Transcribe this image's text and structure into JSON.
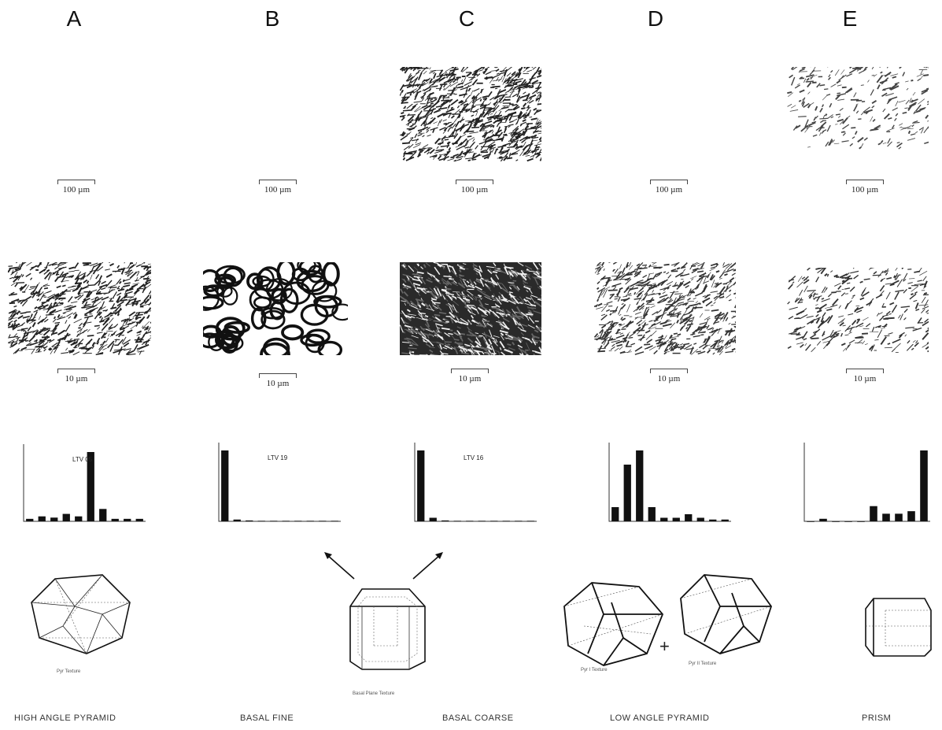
{
  "columns": [
    {
      "letter": "A",
      "caption": "HIGH ANGLE PYRAMID",
      "scale_low": "100 µm",
      "scale_high": "10 µm",
      "hist_label": "LTV 05",
      "crystal_label": "Pyr Texture"
    },
    {
      "letter": "B",
      "caption": "BASAL FINE",
      "scale_low": "100 µm",
      "scale_high": "10 µm",
      "hist_label": "LTV 19",
      "crystal_label": ""
    },
    {
      "letter": "C",
      "caption": "BASAL  COARSE",
      "scale_low": "100 µm",
      "scale_high": "10 µm",
      "hist_label": "LTV 16",
      "crystal_label": "Basal Plane Texture"
    },
    {
      "letter": "D",
      "caption": "LOW ANGLE  PYRAMID",
      "scale_low": "100 µm",
      "scale_high": "10 µm",
      "hist_label": "",
      "crystal_label": "Pyr I Texture",
      "crystal_label_2": "Pyr II Texture"
    },
    {
      "letter": "E",
      "caption": "PRISM",
      "scale_low": "100 µm",
      "scale_high": "10 µm",
      "hist_label": "",
      "crystal_label": ""
    }
  ],
  "chart_data": [
    {
      "type": "bar",
      "title": "LTV 05",
      "values": [
        1,
        2,
        1.5,
        3,
        2,
        28,
        5,
        1,
        1,
        1
      ]
    },
    {
      "type": "bar",
      "title": "LTV 19",
      "values": [
        40,
        1,
        0.5,
        0.3,
        0.3,
        0.3,
        0.3,
        0.3,
        0.3,
        0.3
      ]
    },
    {
      "type": "bar",
      "title": "LTV 16",
      "values": [
        40,
        2,
        0.5,
        0.3,
        0.3,
        0.3,
        0.3,
        0.3,
        0.3,
        0.3
      ]
    },
    {
      "type": "bar",
      "title": "",
      "values": [
        4,
        16,
        20,
        4,
        1,
        1,
        2,
        1,
        0.5,
        0.5
      ]
    },
    {
      "type": "bar",
      "title": "",
      "values": [
        0,
        1,
        0,
        0,
        0,
        6,
        3,
        3,
        4,
        28
      ]
    }
  ],
  "colors": {
    "ink": "#111111",
    "paper": "#ffffff",
    "micro_dark": "#1a1a1a"
  }
}
